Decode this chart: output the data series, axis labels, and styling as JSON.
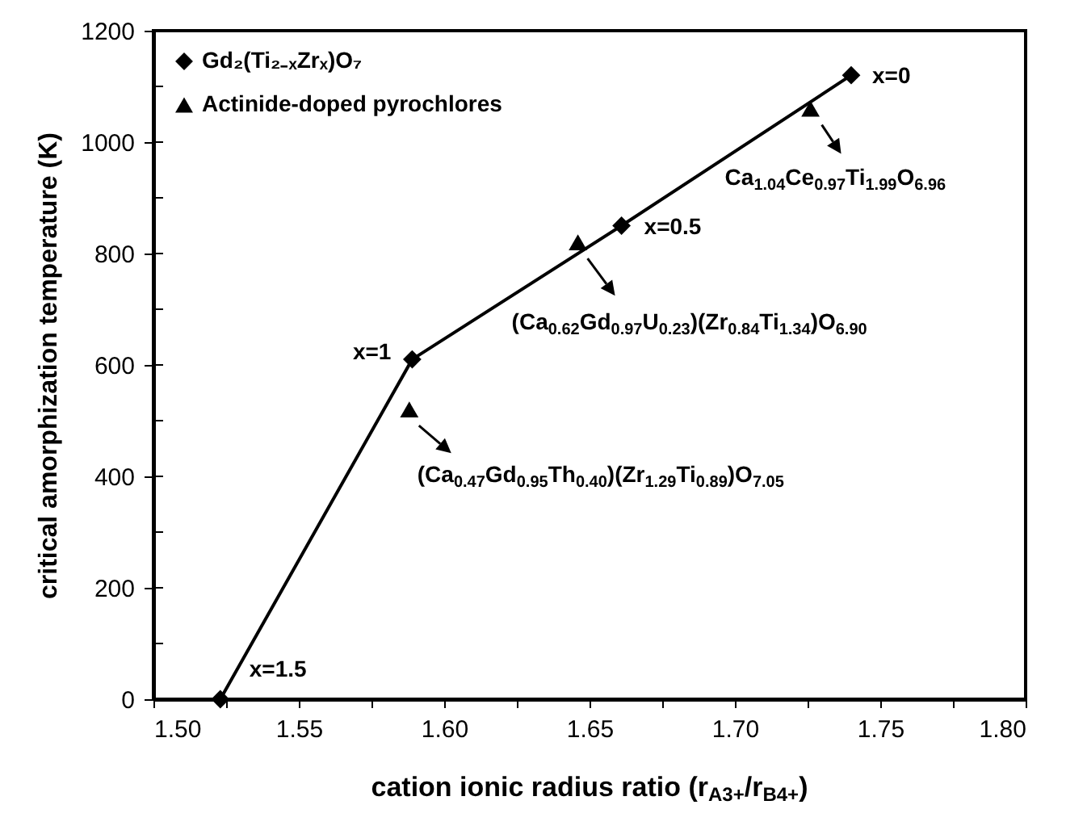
{
  "chart_data": {
    "type": "line",
    "xlabel": "cation ionic radius ratio (r$_{A3+}$/r$_{B4+}$)",
    "ylabel": "critical amorphization temperature (K)",
    "series": [
      {
        "name": "Gd₂(Ti₂₋ₓZrₓ)O₇",
        "type": "line",
        "marker": "diamond",
        "color": "#000000",
        "x": [
          1.523,
          1.589,
          1.661,
          1.74
        ],
        "values": [
          0,
          610,
          850,
          1120
        ]
      },
      {
        "name": "Actinide-doped pyrochlores",
        "type": "scatter",
        "marker": "triangle",
        "color": "#000000",
        "x": [
          1.588,
          1.646,
          1.726
        ],
        "values": [
          520,
          820,
          1060
        ]
      }
    ],
    "xlim": [
      1.5,
      1.8
    ],
    "xticks": [
      {
        "value": 1.5,
        "label": "1.50"
      },
      {
        "value": 1.525,
        "label": null
      },
      1.55,
      {
        "value": 1.575,
        "label": null
      },
      {
        "value": 1.6,
        "label": "1.60"
      },
      {
        "value": 1.625,
        "label": null
      },
      1.65,
      {
        "value": 1.675,
        "label": null
      },
      {
        "value": 1.7,
        "label": "1.70"
      },
      {
        "value": 1.725,
        "label": null
      },
      1.75,
      {
        "value": 1.775,
        "label": null
      },
      {
        "value": 1.8,
        "label": "1.80"
      }
    ],
    "ylim": [
      0,
      1200
    ],
    "yticks": [
      0,
      {
        "value": 100,
        "label": null
      },
      200,
      {
        "value": 300,
        "label": null
      },
      400,
      {
        "value": 500,
        "label": null
      },
      600,
      {
        "value": 700,
        "label": null
      },
      800,
      {
        "value": 900,
        "label": null
      },
      1000,
      {
        "value": 1100,
        "label": null
      },
      1200
    ],
    "grid": false,
    "legend": "top left",
    "annotations": [
      {
        "text": "x=0",
        "x": 1.74,
        "y": 1120
      },
      {
        "text": "x=0.5",
        "x": 1.661,
        "y": 850
      },
      {
        "text": "x=1",
        "x": 1.589,
        "y": 610
      },
      {
        "text": "x=1.5",
        "x": 1.523,
        "y": 0
      },
      {
        "text": "Ca$_{1.04}$Ce$_{0.97}$Ti$_{1.99}$O$_{6.96}$",
        "x": 1.726,
        "y": 1060
      },
      "(Ca$_{0.62}$Gd$_{0.97}$U$_{0.23}$)(Zr$_{0.84}$Ti$_{1.34}$)O$_{6.90}$",
      "(Ca$_{0.47}$Gd$_{0.95}$Th$_{0.40}$)(Zr$_{1.29}$Ti$_{0.89}$)O$_{7.05}$"
    ]
  }
}
